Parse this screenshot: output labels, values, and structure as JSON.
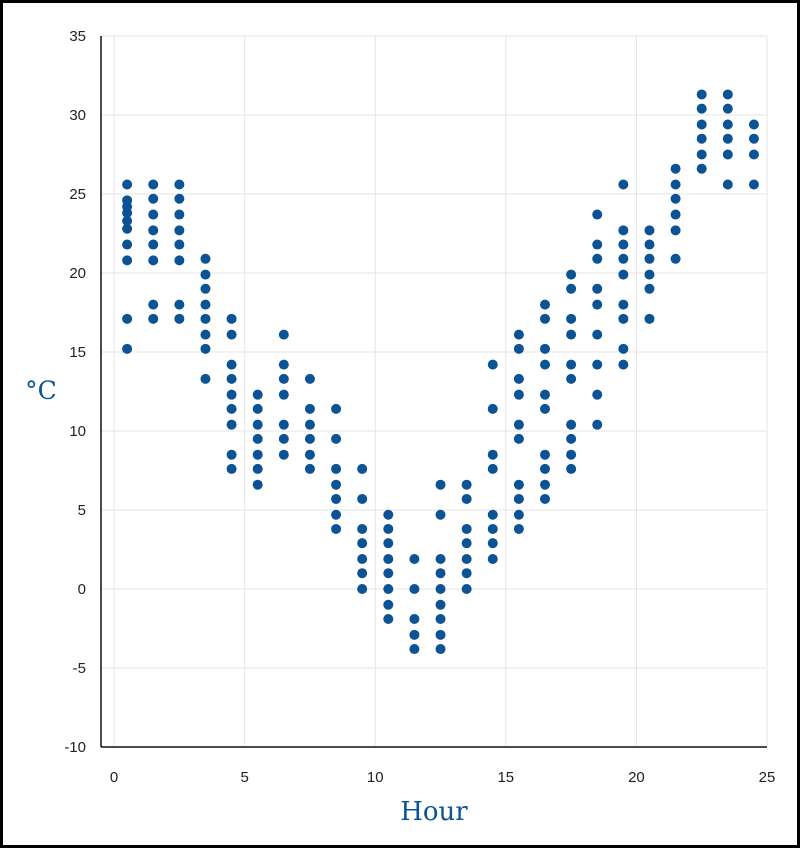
{
  "chart_data": {
    "type": "scatter",
    "title": "",
    "xlabel": "Hour",
    "ylabel": "°C",
    "xlim": [
      -0.5,
      25
    ],
    "ylim": [
      -10,
      35
    ],
    "xticks": [
      0,
      5,
      10,
      15,
      20,
      25
    ],
    "yticks": [
      -10,
      -5,
      0,
      5,
      10,
      15,
      20,
      25,
      30,
      35
    ],
    "grid": true,
    "marker_color": "#0b5394",
    "columns": [
      {
        "x": 0.5,
        "y": [
          15.2,
          17.1,
          20.8,
          21.8,
          22.8,
          23.3,
          23.8,
          24.2,
          24.6,
          25.6
        ]
      },
      {
        "x": 1.5,
        "y": [
          17.1,
          18.0,
          20.8,
          21.8,
          22.7,
          23.7,
          24.7,
          25.6
        ]
      },
      {
        "x": 2.5,
        "y": [
          17.1,
          18.0,
          20.8,
          21.8,
          22.7,
          23.7,
          24.7,
          25.6
        ]
      },
      {
        "x": 3.5,
        "y": [
          13.3,
          15.2,
          16.1,
          17.1,
          18.0,
          19.0,
          19.9,
          20.9
        ]
      },
      {
        "x": 4.5,
        "y": [
          7.6,
          8.5,
          10.4,
          11.4,
          12.3,
          13.3,
          14.2,
          16.1,
          17.1
        ]
      },
      {
        "x": 5.5,
        "y": [
          6.6,
          7.6,
          8.5,
          9.5,
          10.4,
          11.4,
          12.3
        ]
      },
      {
        "x": 6.5,
        "y": [
          8.5,
          9.5,
          10.4,
          12.3,
          13.3,
          14.2,
          16.1
        ]
      },
      {
        "x": 7.5,
        "y": [
          7.6,
          8.5,
          9.5,
          10.4,
          11.4,
          13.3
        ]
      },
      {
        "x": 8.5,
        "y": [
          3.8,
          4.7,
          5.7,
          6.6,
          7.6,
          9.5,
          11.4
        ]
      },
      {
        "x": 9.5,
        "y": [
          0.0,
          1.0,
          1.9,
          2.9,
          3.8,
          5.7,
          7.6
        ]
      },
      {
        "x": 10.5,
        "y": [
          -1.9,
          -1.0,
          0.0,
          1.0,
          1.9,
          2.9,
          3.8,
          4.7
        ]
      },
      {
        "x": 11.5,
        "y": [
          -3.8,
          -2.9,
          -1.9,
          0.0,
          1.9
        ]
      },
      {
        "x": 12.5,
        "y": [
          -3.8,
          -2.9,
          -1.9,
          -1.0,
          0.0,
          1.0,
          1.9,
          4.7,
          6.6
        ]
      },
      {
        "x": 13.5,
        "y": [
          0.0,
          1.0,
          1.9,
          2.9,
          3.8,
          5.7,
          6.6
        ]
      },
      {
        "x": 14.5,
        "y": [
          1.9,
          2.9,
          3.8,
          4.7,
          7.6,
          8.5,
          11.4,
          14.2
        ]
      },
      {
        "x": 15.5,
        "y": [
          3.8,
          4.7,
          5.7,
          6.6,
          9.5,
          10.4,
          12.3,
          13.3,
          15.2,
          16.1
        ]
      },
      {
        "x": 16.5,
        "y": [
          5.7,
          6.6,
          7.6,
          8.5,
          11.4,
          12.3,
          14.2,
          15.2,
          17.1,
          18.0
        ]
      },
      {
        "x": 17.5,
        "y": [
          7.6,
          8.5,
          9.5,
          10.4,
          13.3,
          14.2,
          16.1,
          17.1,
          19.0,
          19.9
        ]
      },
      {
        "x": 18.5,
        "y": [
          10.4,
          12.3,
          14.2,
          16.1,
          18.0,
          19.0,
          20.9,
          21.8,
          23.7
        ]
      },
      {
        "x": 19.5,
        "y": [
          14.2,
          15.2,
          17.1,
          18.0,
          19.9,
          20.9,
          21.8,
          22.7,
          25.6
        ]
      },
      {
        "x": 20.5,
        "y": [
          17.1,
          19.0,
          19.9,
          20.9,
          21.8,
          22.7
        ]
      },
      {
        "x": 21.5,
        "y": [
          20.9,
          22.7,
          23.7,
          24.7,
          25.6,
          26.6
        ]
      },
      {
        "x": 22.5,
        "y": [
          26.6,
          27.5,
          28.5,
          29.4,
          30.4,
          31.3
        ]
      },
      {
        "x": 23.5,
        "y": [
          25.6,
          27.5,
          28.5,
          29.4,
          30.4,
          31.3
        ]
      },
      {
        "x": 24.5,
        "y": [
          25.6,
          27.5,
          28.5,
          29.4
        ]
      }
    ]
  }
}
